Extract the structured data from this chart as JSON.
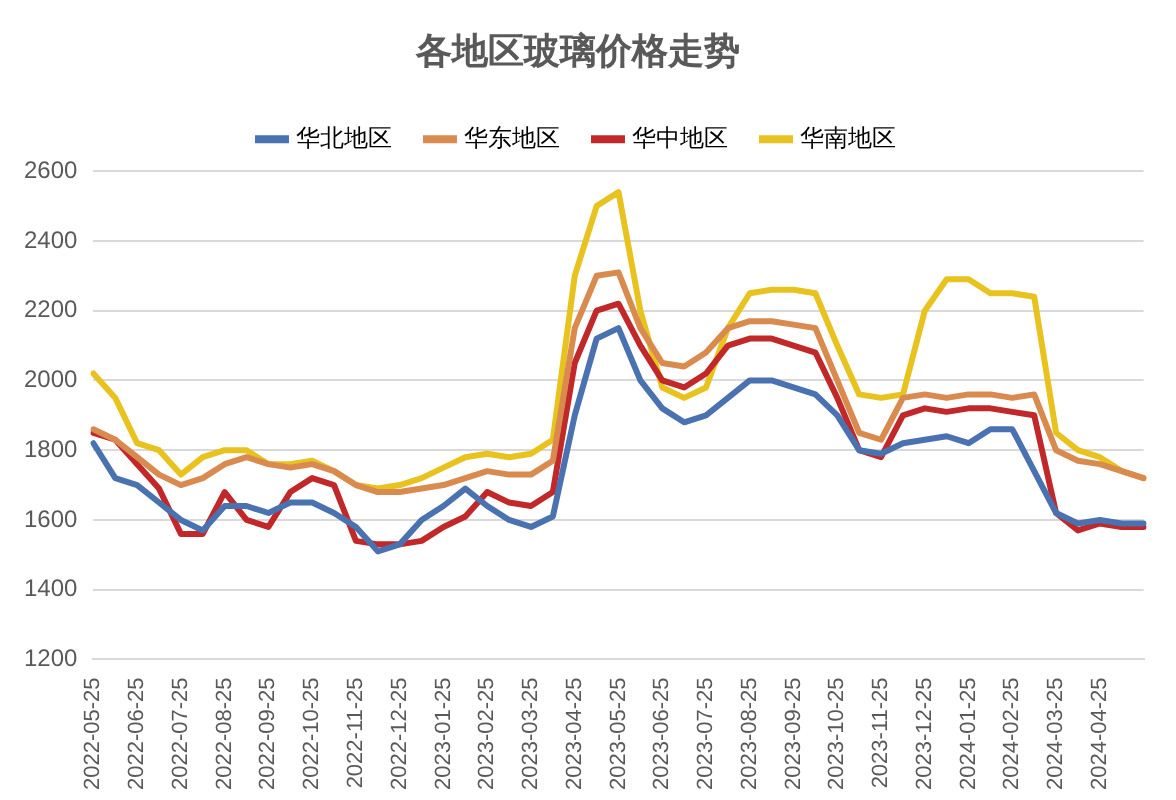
{
  "chart_data": {
    "type": "line",
    "title": "各地区玻璃价格走势",
    "categories": [
      "2022-05-25",
      null,
      "2022-06-25",
      null,
      "2022-07-25",
      null,
      "2022-08-25",
      null,
      "2022-09-25",
      null,
      "2022-10-25",
      null,
      "2022-11-25",
      null,
      "2022-12-25",
      null,
      "2023-01-25",
      null,
      "2023-02-25",
      null,
      "2023-03-25",
      null,
      "2023-04-25",
      null,
      "2023-05-25",
      null,
      "2023-06-25",
      null,
      "2023-07-25",
      null,
      "2023-08-25",
      null,
      "2023-09-25",
      null,
      "2023-10-25",
      null,
      "2023-11-25",
      null,
      "2023-12-25",
      null,
      "2024-01-25",
      null,
      "2024-02-25",
      null,
      "2024-03-25",
      null,
      "2024-04-25",
      null,
      null
    ],
    "series": [
      {
        "name": "华北地区",
        "color": "#4a72b0",
        "values": [
          1820,
          1720,
          1700,
          1650,
          1600,
          1570,
          1640,
          1640,
          1620,
          1650,
          1650,
          1620,
          1580,
          1510,
          1530,
          1600,
          1640,
          1690,
          1640,
          1600,
          1580,
          1610,
          1900,
          2120,
          2150,
          2000,
          1920,
          1880,
          1900,
          1950,
          2000,
          2000,
          1980,
          1960,
          1900,
          1800,
          1790,
          1820,
          1830,
          1840,
          1820,
          1860,
          1860,
          1740,
          1620,
          1590,
          1600,
          1590,
          1590
        ]
      },
      {
        "name": "华东地区",
        "color": "#d98a4f",
        "values": [
          1860,
          1830,
          1780,
          1730,
          1700,
          1720,
          1760,
          1780,
          1760,
          1750,
          1760,
          1740,
          1700,
          1680,
          1680,
          1690,
          1700,
          1720,
          1740,
          1730,
          1730,
          1770,
          2150,
          2300,
          2310,
          2150,
          2050,
          2040,
          2080,
          2150,
          2170,
          2170,
          2160,
          2150,
          2000,
          1850,
          1830,
          1950,
          1960,
          1950,
          1960,
          1960,
          1950,
          1960,
          1800,
          1770,
          1760,
          1740,
          1720
        ]
      },
      {
        "name": "华中地区",
        "color": "#c0282a",
        "values": [
          1850,
          1830,
          1760,
          1690,
          1560,
          1560,
          1680,
          1600,
          1580,
          1680,
          1720,
          1700,
          1540,
          1530,
          1530,
          1540,
          1580,
          1610,
          1680,
          1650,
          1640,
          1680,
          2050,
          2200,
          2220,
          2100,
          2000,
          1980,
          2020,
          2100,
          2120,
          2120,
          2100,
          2080,
          1950,
          1800,
          1780,
          1900,
          1920,
          1910,
          1920,
          1920,
          1910,
          1900,
          1620,
          1570,
          1590,
          1580,
          1580
        ]
      },
      {
        "name": "华南地区",
        "color": "#e8c21e",
        "values": [
          2020,
          1950,
          1820,
          1800,
          1730,
          1780,
          1800,
          1800,
          1760,
          1760,
          1770,
          1740,
          1700,
          1690,
          1700,
          1720,
          1750,
          1780,
          1790,
          1780,
          1790,
          1830,
          2300,
          2500,
          2540,
          2200,
          1980,
          1950,
          1980,
          2150,
          2250,
          2260,
          2260,
          2250,
          2100,
          1960,
          1950,
          1960,
          2200,
          2290,
          2290,
          2250,
          2250,
          2240,
          1850,
          1800,
          1780,
          1740,
          1720
        ]
      }
    ],
    "ylim": [
      1200,
      2600
    ],
    "yticks": [
      1200,
      1400,
      1600,
      1800,
      2000,
      2200,
      2400,
      2600
    ],
    "grid": "y",
    "legend": "top",
    "marker": "none",
    "line_style": "solid"
  }
}
